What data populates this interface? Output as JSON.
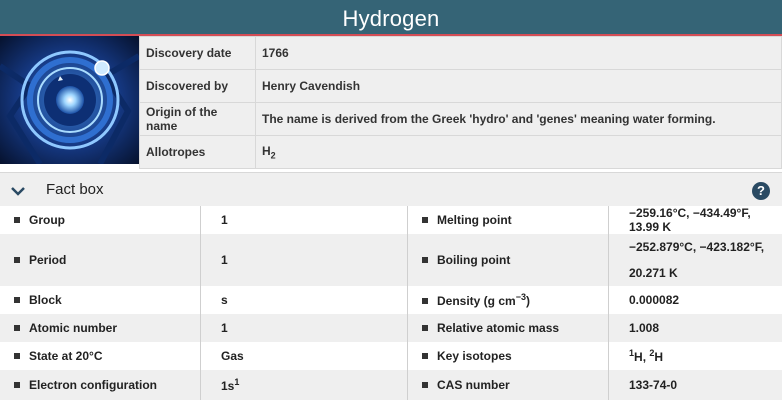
{
  "element": {
    "name": "Hydrogen"
  },
  "info_rows": [
    {
      "label": "Discovery date",
      "value": "1766"
    },
    {
      "label": "Discovered by",
      "value": "Henry Cavendish"
    },
    {
      "label": "Origin of the name",
      "value": "The name is derived from the Greek 'hydro' and 'genes' meaning water forming."
    },
    {
      "label": "Allotropes",
      "value": "H",
      "sub": "2"
    }
  ],
  "factbox": {
    "title": "Fact box",
    "help_label": "?",
    "rows": [
      {
        "left_label": "Group",
        "left_value": "1",
        "right_label": "Melting point",
        "right_value": "−259.16°C, −434.49°F, 13.99 K"
      },
      {
        "left_label": "Period",
        "left_value": "1",
        "right_label": "Boiling point",
        "right_value_line1": "−252.879°C, −423.182°F,",
        "right_value_line2": "20.271 K"
      },
      {
        "left_label": "Block",
        "left_value": "s",
        "right_label": "Density (g cm",
        "right_label_sup": "−3",
        "right_label_tail": ")",
        "right_value": "0.000082"
      },
      {
        "left_label": "Atomic number",
        "left_value": "1",
        "right_label": "Relative atomic mass",
        "right_value": "1.008"
      },
      {
        "left_label": "State at 20°C",
        "left_value": "Gas",
        "right_label": "Key isotopes",
        "iso1_sup": "1",
        "iso1": "H",
        "iso_sep": ", ",
        "iso2_sup": "2",
        "iso2": "H"
      },
      {
        "left_label": "Electron configuration",
        "left_value": "1s",
        "left_value_sup": "1",
        "right_label": "CAS number",
        "right_value": "133-74-0"
      }
    ]
  },
  "colors": {
    "title_bar": "#356476",
    "accent_line": "#d44d55",
    "row_alt": "#efefef",
    "icon_dark": "#2a4a63"
  }
}
